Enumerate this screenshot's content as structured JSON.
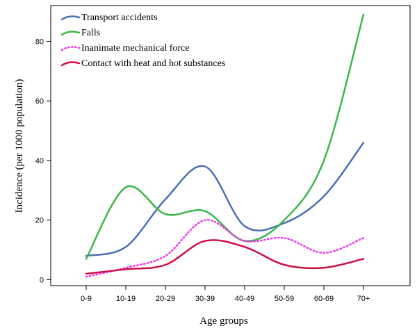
{
  "chart_data": {
    "type": "line",
    "xlabel": "Age groups",
    "ylabel": "Incidence (per 1000 population)",
    "categories": [
      "0-9",
      "10-19",
      "20-29",
      "30-39",
      "40-49",
      "50-59",
      "60-69",
      "70+"
    ],
    "yticks": [
      0,
      20,
      40,
      60,
      80
    ],
    "ylim": [
      -2,
      92
    ],
    "grid": false,
    "legend_position": "top-left",
    "series": [
      {
        "name": "Transport accidents",
        "values": [
          8,
          11,
          27,
          38,
          18,
          19,
          28,
          46
        ],
        "color": "#4a6fb5",
        "style": "solid"
      },
      {
        "name": "Falls",
        "values": [
          7,
          31,
          22,
          23,
          13,
          20,
          40,
          89
        ],
        "color": "#3cb64a",
        "style": "solid"
      },
      {
        "name": "Inanimate mechanical force",
        "values": [
          1,
          4,
          8,
          20,
          13,
          14,
          9,
          14
        ],
        "color": "#ee33ee",
        "style": "dotted"
      },
      {
        "name": "Contact with heat and hot substances",
        "values": [
          2,
          3.5,
          5,
          13,
          11,
          5,
          4,
          7
        ],
        "color": "#cc1144",
        "style": "solid"
      }
    ]
  }
}
